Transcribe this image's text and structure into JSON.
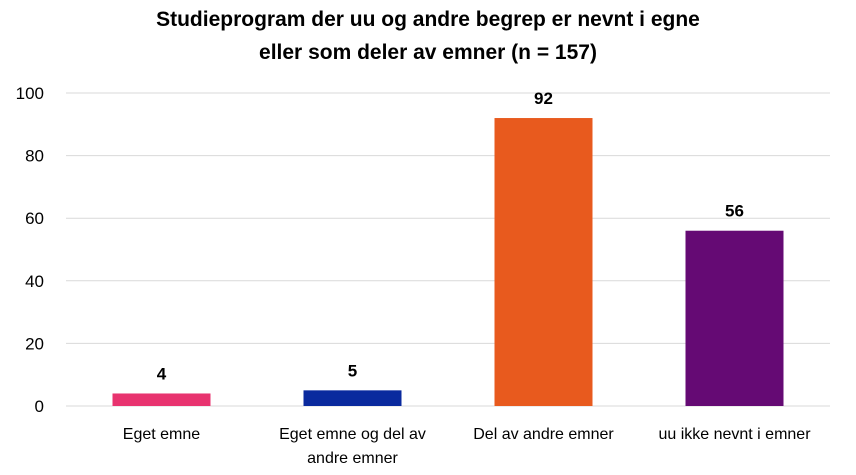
{
  "chart_data": {
    "type": "bar",
    "title_lines": [
      "Studieprogram der uu og andre begrep er nevnt i egne",
      "eller som deler av emner (n = 157)"
    ],
    "categories": [
      [
        "Eget emne"
      ],
      [
        "Eget emne og del av",
        "andre emner"
      ],
      [
        "Del av andre emner"
      ],
      [
        "uu ikke nevnt i emner"
      ]
    ],
    "values": [
      4,
      5,
      92,
      56
    ],
    "colors": [
      "#e8336f",
      "#0a2a9e",
      "#e85a1e",
      "#650a74"
    ],
    "yticks": [
      0,
      20,
      40,
      60,
      80,
      100
    ],
    "ylim": [
      0,
      100
    ],
    "xlabel": "",
    "ylabel": "",
    "grid": true,
    "legend": "none"
  }
}
